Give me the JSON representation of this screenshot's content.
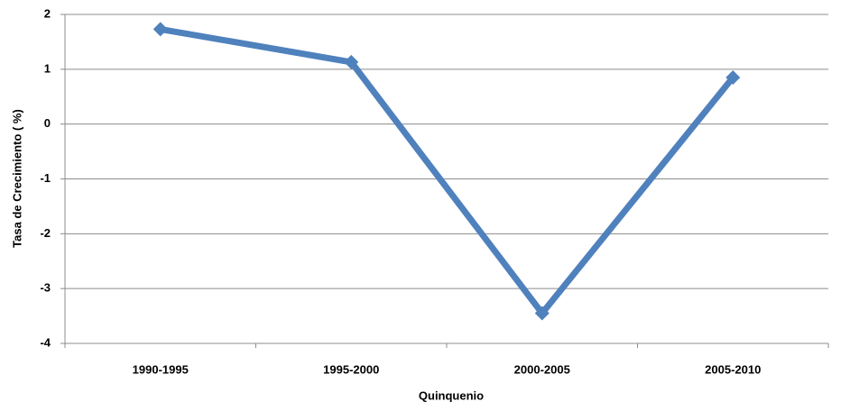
{
  "chart_data": {
    "type": "line",
    "x_label": "Quinquenio",
    "y_label": "Tasa de Crecimiento ( %)",
    "categories": [
      "1990-1995",
      "1995-2000",
      "2000-2005",
      "2005-2010"
    ],
    "series": [
      {
        "name": "Tasa de Crecimiento",
        "color": "#4f81bd",
        "values": [
          1.73,
          1.13,
          -3.45,
          0.85
        ]
      }
    ],
    "ylim": [
      -4,
      2
    ],
    "yticks": [
      -4,
      -3,
      -2,
      -1,
      0,
      1,
      2
    ],
    "grid": true
  }
}
